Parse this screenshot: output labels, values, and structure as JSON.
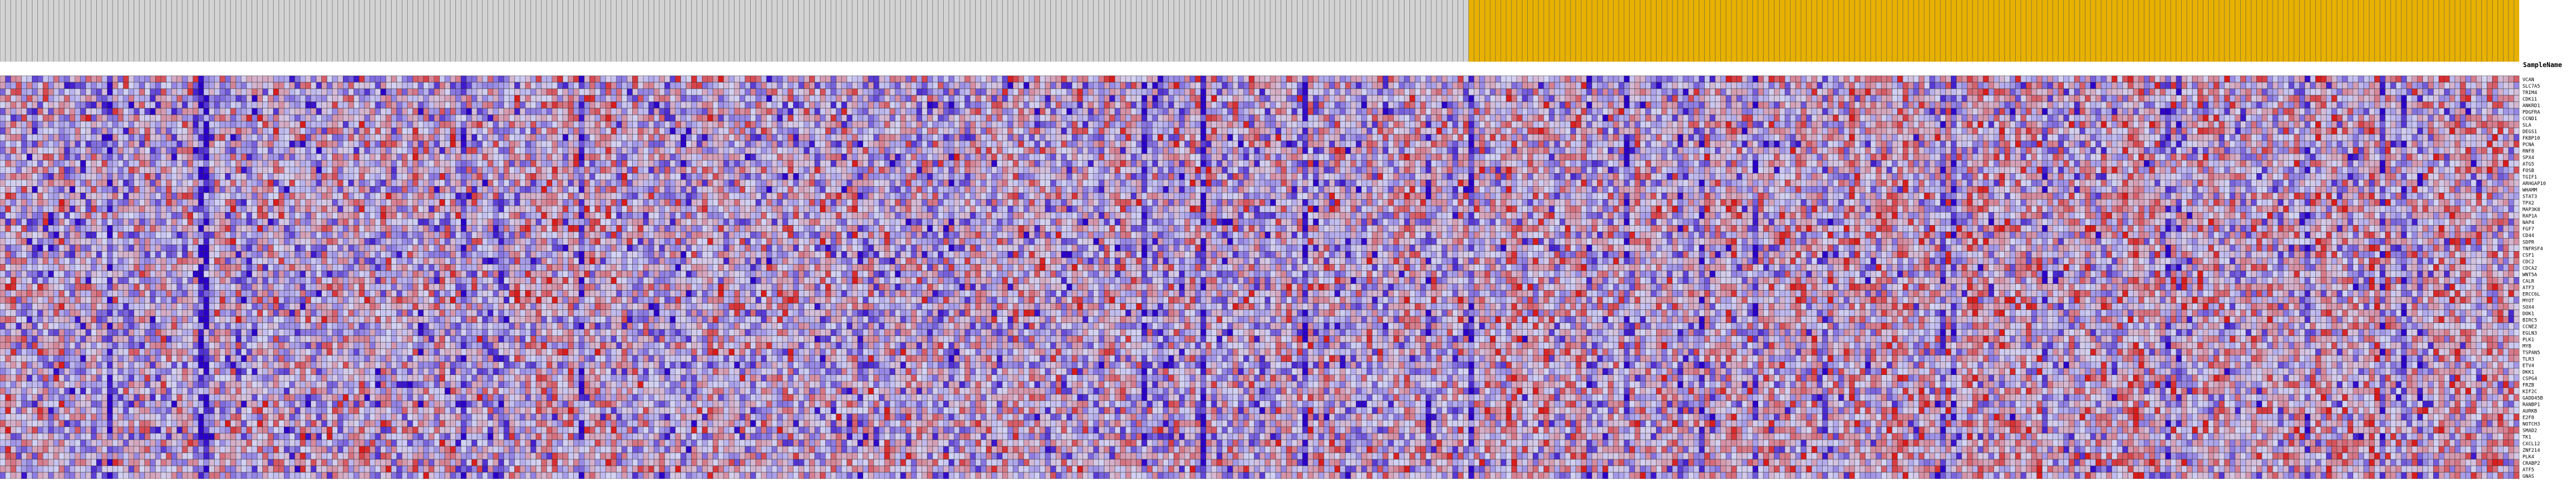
{
  "chart_data": {
    "type": "heatmap",
    "title": "",
    "xlabel": "",
    "ylabel": "",
    "row_header": "SampleName",
    "rows": [
      "VCAN",
      "SLC7A5",
      "TRIM4",
      "CDK11",
      "ANKRD1",
      "PDGFRA",
      "CCND1",
      "SLA",
      "DEGS1",
      "FKBP10",
      "PCNA",
      "RNF8",
      "SPX4",
      "ATG5",
      "FOSB",
      "TGIF1",
      "ARHGAP10",
      "WHAMM",
      "STAT3",
      "TPX2",
      "MAP3K8",
      "RAP1A",
      "NAP4",
      "FGF7",
      "CD44",
      "SDPR",
      "TNFRSF4",
      "CSF1",
      "CDC2",
      "CDCA2",
      "WNT5A",
      "CALR",
      "ATF3",
      "ERCC6L",
      "MYOT",
      "SOX4",
      "DOK1",
      "BIRC5",
      "CCNE2",
      "EGLN3",
      "PLK1",
      "MYB",
      "TSPAN5",
      "TLR3",
      "ETV4",
      "DKK1",
      "CSPG4",
      "FRZB",
      "KIF2C",
      "GADD45B",
      "RANBP1",
      "AURKB",
      "E2F8",
      "NOTCH3",
      "SMAD2",
      "TK1",
      "CXCL12",
      "ZNF214",
      "PLK4",
      "CRABP2",
      "ATF5",
      "GNAS"
    ],
    "groups": [
      {
        "name": "",
        "color": "#d3d3d3",
        "count": 274
      },
      {
        "name": "",
        "color": "#e8b100",
        "count": 196
      }
    ],
    "color_scale": {
      "low": "#2a00c8",
      "mid": "#d4d4f4",
      "high": "#d81b1b",
      "range": [
        -2,
        2
      ]
    },
    "grid": true,
    "legend_position": "none",
    "values_note_seed": 20240607
  }
}
